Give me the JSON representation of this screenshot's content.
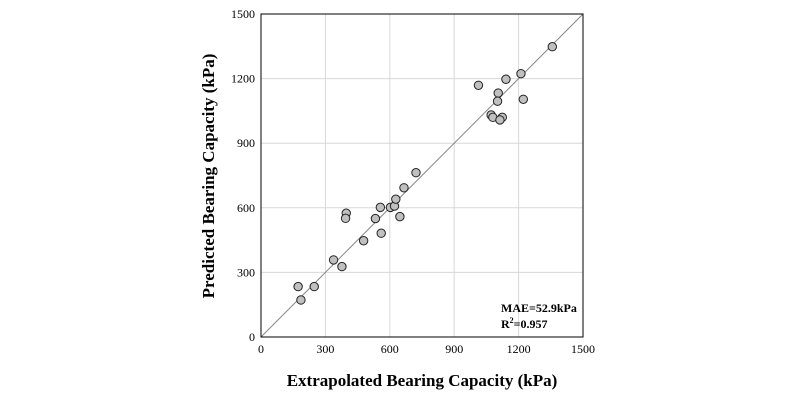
{
  "chart_data": {
    "type": "scatter",
    "title": "",
    "xlabel": "Extrapolated Bearing Capacity (kPa)",
    "ylabel": "Predicted Bearing Capacity (kPa)",
    "xlim": [
      0,
      1500
    ],
    "ylim": [
      0,
      1500
    ],
    "xticks": [
      "0",
      "300",
      "600",
      "900",
      "1200",
      "1500"
    ],
    "yticks": [
      "0",
      "300",
      "600",
      "900",
      "1200",
      "1500"
    ],
    "grid": true,
    "reference_line": "y = x",
    "marker_color": "#c0c0c0",
    "annotations": {
      "mae": "MAE=52.9kPa",
      "r2_prefix": "R",
      "r2_sup": "2",
      "r2_value": "=0.957"
    },
    "points": [
      [
        173,
        234
      ],
      [
        248,
        234
      ],
      [
        186,
        172
      ],
      [
        338,
        358
      ],
      [
        377,
        327
      ],
      [
        478,
        447
      ],
      [
        397,
        575
      ],
      [
        394,
        551
      ],
      [
        533,
        550
      ],
      [
        560,
        482
      ],
      [
        556,
        602
      ],
      [
        603,
        602
      ],
      [
        622,
        608
      ],
      [
        628,
        640
      ],
      [
        647,
        559
      ],
      [
        666,
        693
      ],
      [
        722,
        763
      ],
      [
        1357,
        1348
      ],
      [
        1013,
        1169
      ],
      [
        1141,
        1197
      ],
      [
        1211,
        1223
      ],
      [
        1105,
        1133
      ],
      [
        1102,
        1095
      ],
      [
        1222,
        1104
      ],
      [
        1072,
        1031
      ],
      [
        1080,
        1020
      ],
      [
        1124,
        1020
      ],
      [
        1113,
        1008
      ]
    ]
  }
}
